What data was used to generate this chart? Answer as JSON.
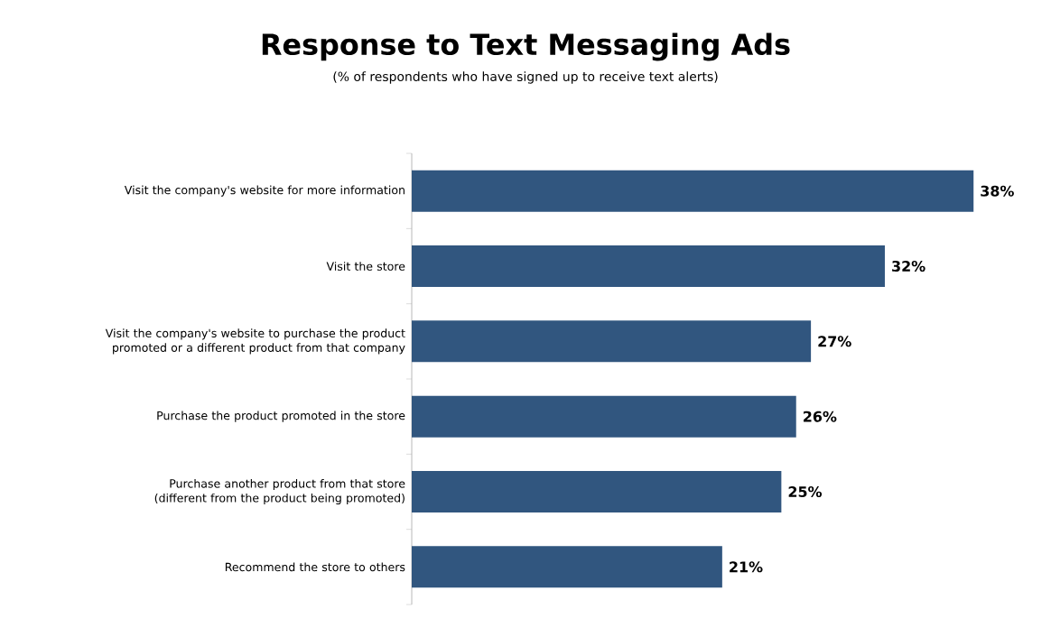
{
  "chart_data": {
    "type": "bar",
    "orientation": "horizontal",
    "title": "Response to Text Messaging Ads",
    "subtitle": "(% of respondents who have signed up to receive text alerts)",
    "categories": [
      "Visit the company's website for more information",
      "Visit the store",
      "Visit the company's website to purchase the product promoted or a different product from that company",
      "Purchase the product promoted in the store",
      "Purchase another product from that store (different from the product being promoted)",
      "Recommend the store to others"
    ],
    "values": [
      38,
      32,
      27,
      26,
      25,
      21
    ],
    "value_labels": [
      "38%",
      "32%",
      "27%",
      "26%",
      "25%",
      "21%"
    ],
    "color": "#31567f"
  }
}
